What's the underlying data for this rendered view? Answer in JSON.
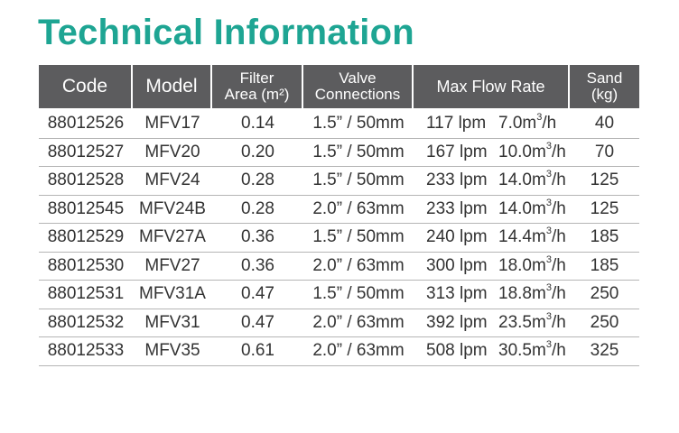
{
  "title": "Technical Information",
  "headers": {
    "code": "Code",
    "model": "Model",
    "filter_area": [
      "Filter",
      "Area (m²)"
    ],
    "valve_connections": [
      "Valve",
      "Connections"
    ],
    "max_flow_rate": "Max Flow Rate",
    "sand": [
      "Sand",
      "(kg)"
    ]
  },
  "flow_unit_base": "m",
  "flow_unit_exp": "3",
  "flow_unit_tail": "/h",
  "rows": [
    {
      "code": "88012526",
      "model": "MFV17",
      "area": "0.14",
      "valve": "1.5” / 50mm",
      "lpm": "117 lpm",
      "m3h": "7.0",
      "sand": "40"
    },
    {
      "code": "88012527",
      "model": "MFV20",
      "area": "0.20",
      "valve": "1.5” / 50mm",
      "lpm": "167 lpm",
      "m3h": "10.0",
      "sand": "70"
    },
    {
      "code": "88012528",
      "model": "MFV24",
      "area": "0.28",
      "valve": "1.5” / 50mm",
      "lpm": "233 lpm",
      "m3h": "14.0",
      "sand": "125"
    },
    {
      "code": "88012545",
      "model": "MFV24B",
      "area": "0.28",
      "valve": "2.0” / 63mm",
      "lpm": "233 lpm",
      "m3h": "14.0",
      "sand": "125"
    },
    {
      "code": "88012529",
      "model": "MFV27A",
      "area": "0.36",
      "valve": "1.5” / 50mm",
      "lpm": "240 lpm",
      "m3h": "14.4",
      "sand": "185"
    },
    {
      "code": "88012530",
      "model": "MFV27",
      "area": "0.36",
      "valve": "2.0” / 63mm",
      "lpm": "300 lpm",
      "m3h": "18.0",
      "sand": "185"
    },
    {
      "code": "88012531",
      "model": "MFV31A",
      "area": "0.47",
      "valve": "1.5” / 50mm",
      "lpm": "313 lpm",
      "m3h": "18.8",
      "sand": "250"
    },
    {
      "code": "88012532",
      "model": "MFV31",
      "area": "0.47",
      "valve": "2.0” / 63mm",
      "lpm": "392 lpm",
      "m3h": "23.5",
      "sand": "250"
    },
    {
      "code": "88012533",
      "model": "MFV35",
      "area": "0.61",
      "valve": "2.0” / 63mm",
      "lpm": "508 lpm",
      "m3h": "30.5",
      "sand": "325"
    }
  ],
  "colors": {
    "title": "#1ea593",
    "header_bg": "#5c5c5e",
    "header_text": "#ffffff",
    "row_divider": "#b5b5b5",
    "body_text": "#333333"
  }
}
